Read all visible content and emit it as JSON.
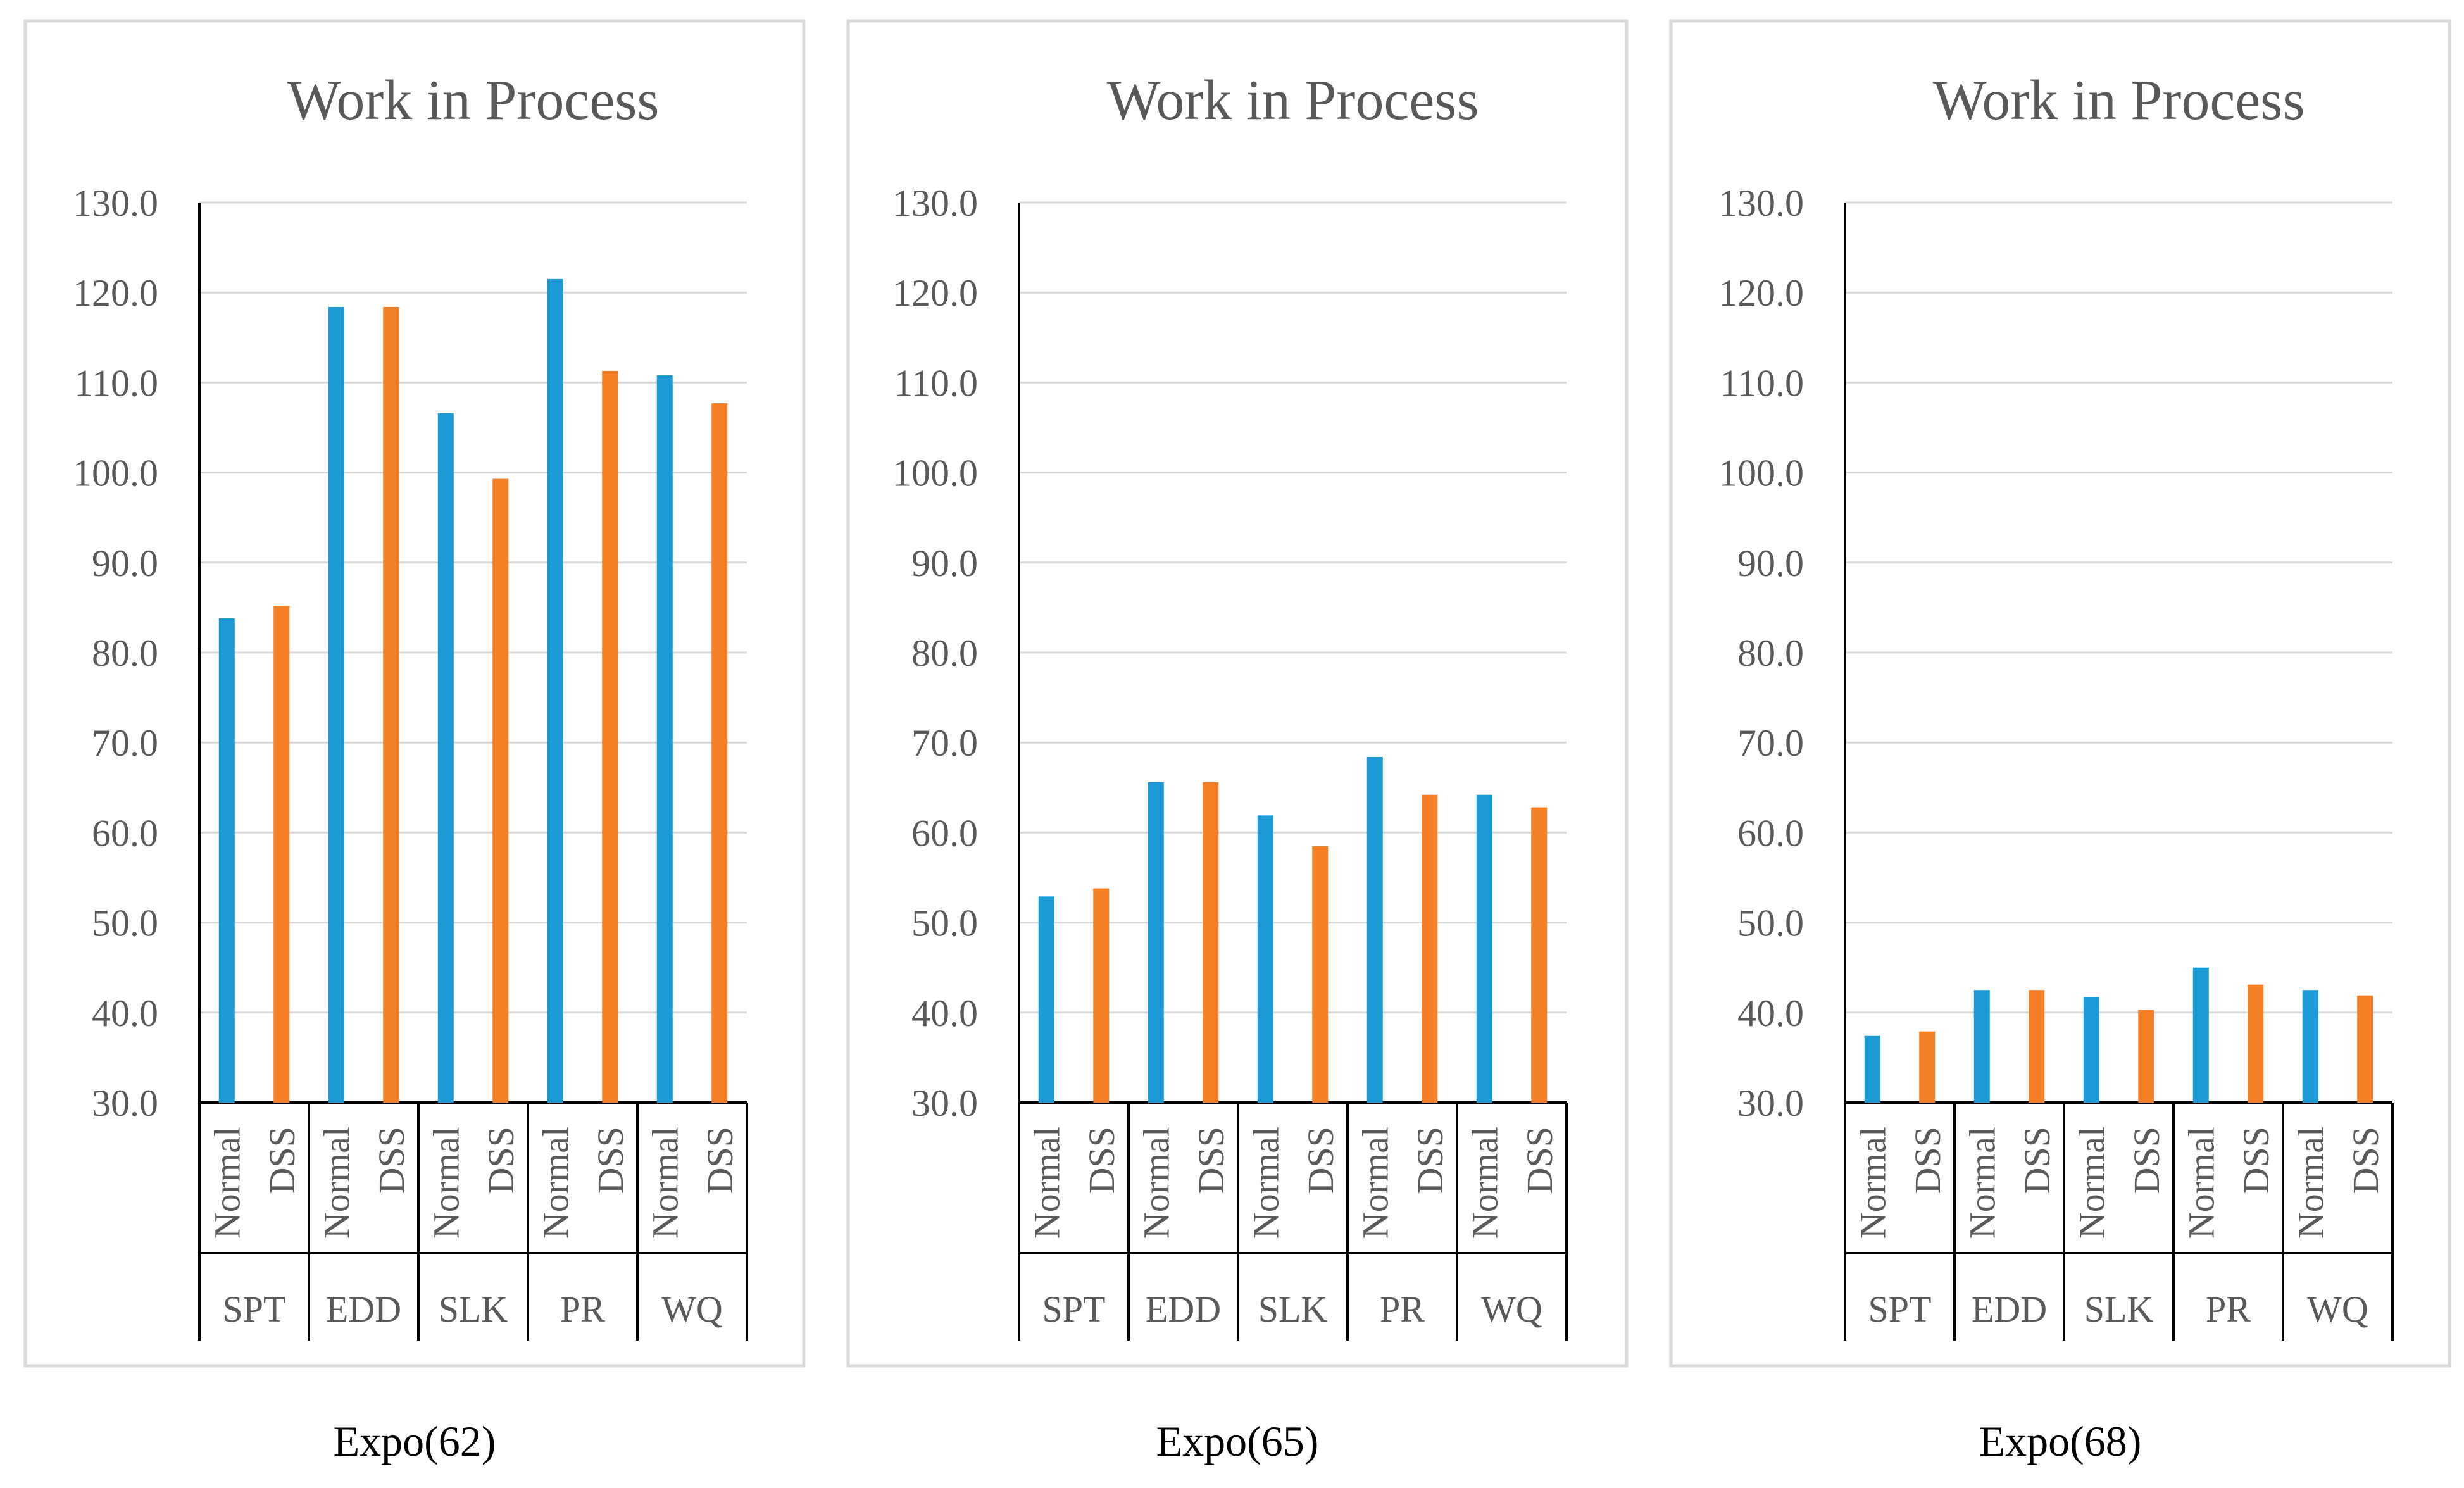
{
  "colors": {
    "normal": "#1c9ad6",
    "dss": "#f47f26",
    "text": "#595959",
    "grid": "#d9d9d9"
  },
  "chart_data": [
    {
      "type": "bar",
      "title": "Work in Process",
      "caption": "Expo(62)",
      "groups": [
        "SPT",
        "EDD",
        "SLK",
        "PR",
        "WQ"
      ],
      "bar_labels": [
        "Normal",
        "DSS"
      ],
      "ylim": [
        30,
        130
      ],
      "yticks": [
        "30.0",
        "40.0",
        "50.0",
        "60.0",
        "70.0",
        "80.0",
        "90.0",
        "100.0",
        "110.0",
        "120.0",
        "130.0"
      ],
      "series": [
        {
          "name": "Normal",
          "values": [
            83.8,
            118.4,
            106.6,
            121.5,
            110.8
          ]
        },
        {
          "name": "DSS",
          "values": [
            85.2,
            118.4,
            99.3,
            111.3,
            107.7
          ]
        }
      ],
      "grid": true
    },
    {
      "type": "bar",
      "title": "Work in Process",
      "caption": "Expo(65)",
      "groups": [
        "SPT",
        "EDD",
        "SLK",
        "PR",
        "WQ"
      ],
      "bar_labels": [
        "Normal",
        "DSS"
      ],
      "ylim": [
        30,
        130
      ],
      "yticks": [
        "30.0",
        "40.0",
        "50.0",
        "60.0",
        "70.0",
        "80.0",
        "90.0",
        "100.0",
        "110.0",
        "120.0",
        "130.0"
      ],
      "series": [
        {
          "name": "Normal",
          "values": [
            52.9,
            65.6,
            61.9,
            68.4,
            64.2
          ]
        },
        {
          "name": "DSS",
          "values": [
            53.8,
            65.6,
            58.5,
            64.2,
            62.8
          ]
        }
      ],
      "grid": true
    },
    {
      "type": "bar",
      "title": "Work in Process",
      "caption": "Expo(68)",
      "groups": [
        "SPT",
        "EDD",
        "SLK",
        "PR",
        "WQ"
      ],
      "bar_labels": [
        "Normal",
        "DSS"
      ],
      "ylim": [
        30,
        130
      ],
      "yticks": [
        "30.0",
        "40.0",
        "50.0",
        "60.0",
        "70.0",
        "80.0",
        "90.0",
        "100.0",
        "110.0",
        "120.0",
        "130.0"
      ],
      "series": [
        {
          "name": "Normal",
          "values": [
            37.4,
            42.5,
            41.7,
            45.0,
            42.5
          ]
        },
        {
          "name": "DSS",
          "values": [
            37.9,
            42.5,
            40.3,
            43.1,
            41.9
          ]
        }
      ],
      "grid": true
    }
  ]
}
